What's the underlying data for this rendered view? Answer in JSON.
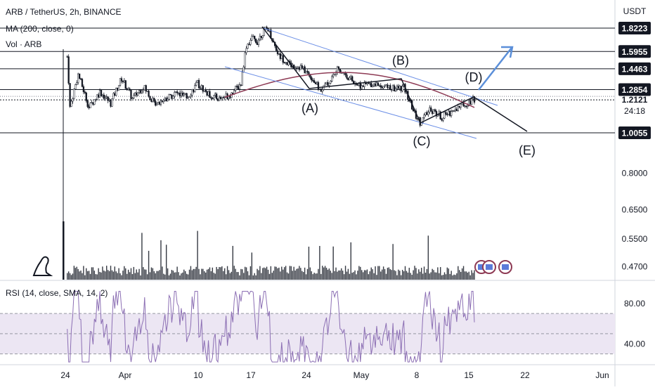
{
  "legend": {
    "symbol": "ARB / TetherUS, 2h, BINANCE",
    "ma": "MA (200, close, 0)",
    "vol": "Vol · ARB",
    "rsi": "RSI (14, close, SMA, 14, 2)"
  },
  "colors": {
    "candle": "#131722",
    "ma": "#8e3b55",
    "channel": "#6a8ee6",
    "projection_arrow": "#5b8fd9",
    "wave_lines": "#131722",
    "rsi_line": "#8c6fb4",
    "rsi_band": "#ece6f3",
    "price_label_bg": "#131722"
  },
  "chart_data": [
    {
      "type": "candlestick",
      "quote_currency": "USDT",
      "y_scale": "log",
      "ylim": [
        0.43,
        1.9
      ],
      "y_ticks": [
        "0.8000",
        "0.6500",
        "0.5500",
        "0.4700"
      ],
      "x_tick_labels": [
        "24",
        "Apr",
        "10",
        "17",
        "24",
        "May",
        "8",
        "15",
        "22",
        "Jun"
      ],
      "horizontal_levels": [
        "1.8223",
        "1.5955",
        "1.4463",
        "1.2854",
        "1.0055"
      ],
      "current_price": "1.2121",
      "countdown": "24:18",
      "moving_average": {
        "name": "MA (200, close, 0)"
      },
      "wave_labels": [
        "(A)",
        "(B)",
        "(C)",
        "(D)",
        "(E)"
      ],
      "price_path": [
        {
          "d": 1,
          "p": 1.55
        },
        {
          "d": 1.5,
          "p": 1.16
        },
        {
          "d": 3,
          "p": 1.4
        },
        {
          "d": 5,
          "p": 1.16
        },
        {
          "d": 7,
          "p": 1.27
        },
        {
          "d": 9,
          "p": 1.19
        },
        {
          "d": 11,
          "p": 1.37
        },
        {
          "d": 13,
          "p": 1.22
        },
        {
          "d": 15,
          "p": 1.31
        },
        {
          "d": 17,
          "p": 1.19
        },
        {
          "d": 19,
          "p": 1.22
        },
        {
          "d": 21,
          "p": 1.26
        },
        {
          "d": 23,
          "p": 1.23
        },
        {
          "d": 25,
          "p": 1.33
        },
        {
          "d": 27,
          "p": 1.25
        },
        {
          "d": 29,
          "p": 1.22
        },
        {
          "d": 31,
          "p": 1.25
        },
        {
          "d": 33,
          "p": 1.33
        },
        {
          "d": 34,
          "p": 1.65
        },
        {
          "d": 35,
          "p": 1.72
        },
        {
          "d": 36,
          "p": 1.69
        },
        {
          "d": 37,
          "p": 1.78
        },
        {
          "d": 38,
          "p": 1.82
        },
        {
          "d": 39,
          "p": 1.68
        },
        {
          "d": 40,
          "p": 1.56
        },
        {
          "d": 42,
          "p": 1.48
        },
        {
          "d": 44,
          "p": 1.46
        },
        {
          "d": 46,
          "p": 1.38
        },
        {
          "d": 47.5,
          "p": 1.28
        },
        {
          "d": 49,
          "p": 1.33
        },
        {
          "d": 51,
          "p": 1.45
        },
        {
          "d": 53,
          "p": 1.37
        },
        {
          "d": 55,
          "p": 1.31
        },
        {
          "d": 57,
          "p": 1.33
        },
        {
          "d": 59,
          "p": 1.32
        },
        {
          "d": 61,
          "p": 1.29
        },
        {
          "d": 63,
          "p": 1.3
        },
        {
          "d": 65,
          "p": 1.12
        },
        {
          "d": 66,
          "p": 1.07
        },
        {
          "d": 68,
          "p": 1.15
        },
        {
          "d": 70,
          "p": 1.1
        },
        {
          "d": 72,
          "p": 1.14
        },
        {
          "d": 74,
          "p": 1.18
        },
        {
          "d": 76,
          "p": 1.22
        }
      ],
      "rsi": {
        "name": "RSI (14, close, SMA, 14, 2)",
        "y_ticks": [
          "80.00",
          "40.00"
        ],
        "ylim": [
          20,
          100
        ],
        "band": [
          30,
          70
        ],
        "midline": 50
      }
    }
  ]
}
